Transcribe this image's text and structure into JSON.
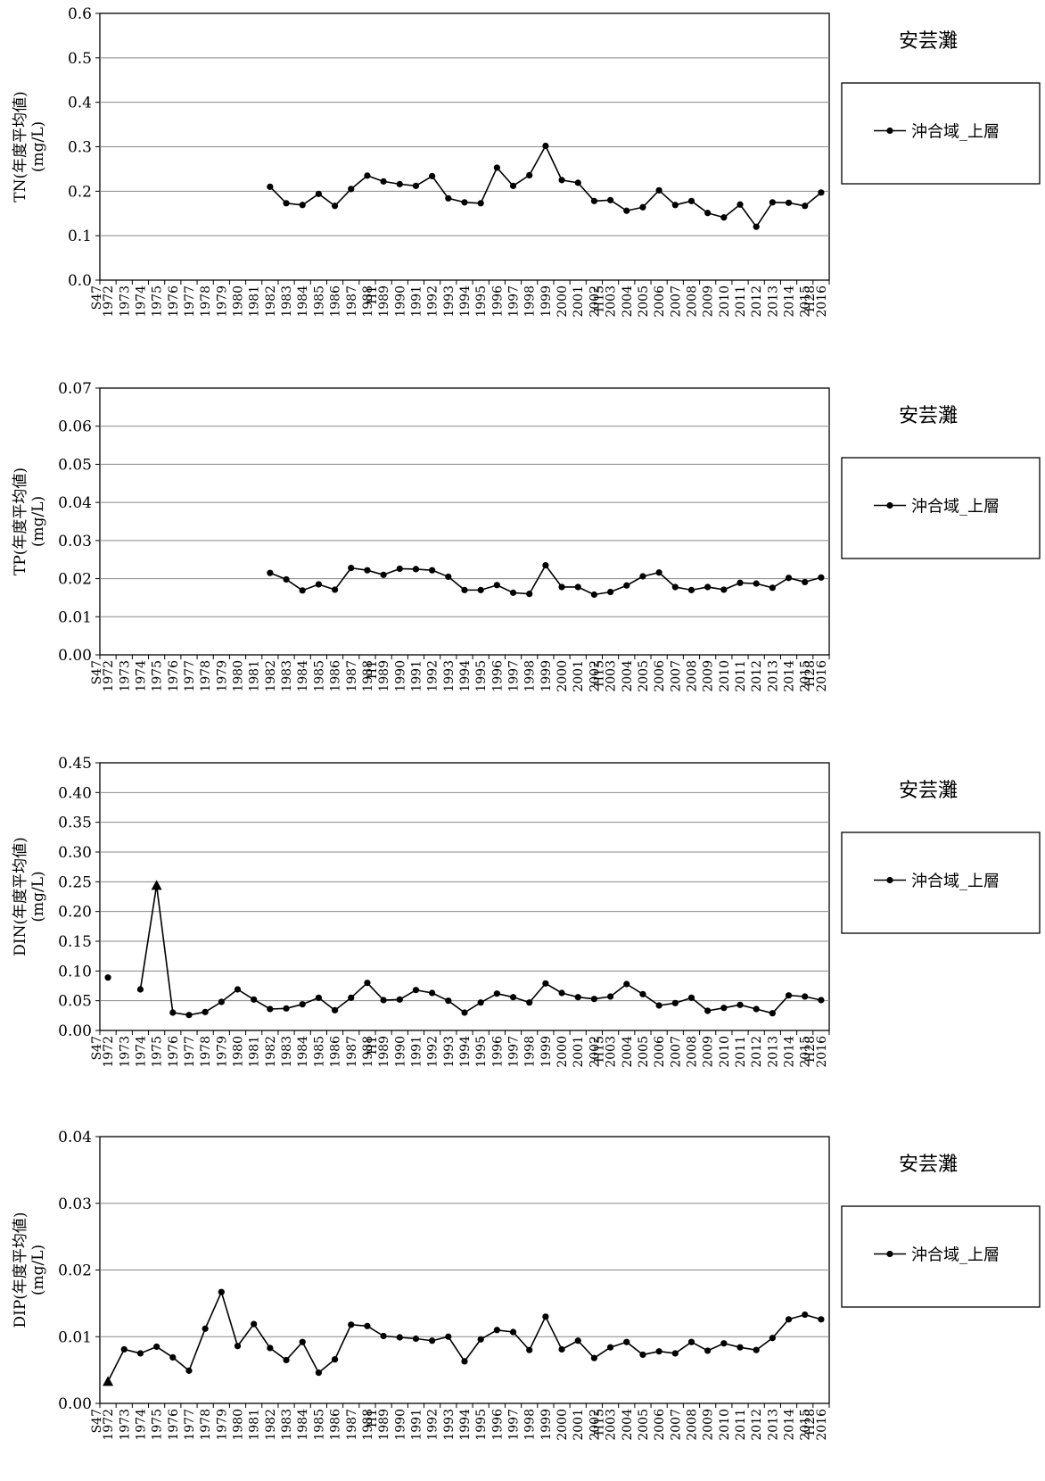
{
  "years": [
    "1972",
    "1973",
    "1974",
    "1975",
    "1976",
    "1977",
    "1978",
    "1979",
    "1980",
    "1981",
    "1982",
    "1983",
    "1984",
    "1985",
    "1986",
    "1987",
    "1988",
    "1989",
    "1990",
    "1991",
    "1992",
    "1993",
    "1994",
    "1995",
    "1996",
    "1997",
    "1998",
    "1999",
    "2000",
    "2001",
    "2002",
    "2003",
    "2004",
    "2005",
    "2006",
    "2007",
    "2008",
    "2009",
    "2010",
    "2011",
    "2012",
    "2013",
    "2014",
    "2015",
    "2016"
  ],
  "era_labels": [
    {
      "year": "1972",
      "label": "S47"
    },
    {
      "year": "1989",
      "label": "H1"
    },
    {
      "year": "2003",
      "label": "H15"
    },
    {
      "year": "2016",
      "label": "H28"
    }
  ],
  "chart_data": [
    {
      "type": "line",
      "region": "安芸灘",
      "ylabel": "TN(年度平均値)",
      "yunit": "(mg/L)",
      "ylim": [
        0,
        0.6
      ],
      "yticks": [
        "0.0",
        "0.1",
        "0.2",
        "0.3",
        "0.4",
        "0.5",
        "0.6"
      ],
      "grid": true,
      "legend_position": "right",
      "series": [
        {
          "name": "沖合域_上層",
          "values": [
            null,
            null,
            null,
            null,
            null,
            null,
            null,
            null,
            null,
            null,
            0.21,
            0.173,
            0.169,
            0.194,
            0.167,
            0.205,
            0.235,
            0.222,
            0.216,
            0.212,
            0.234,
            0.184,
            0.175,
            0.173,
            0.253,
            0.212,
            0.236,
            0.302,
            0.225,
            0.219,
            0.178,
            0.18,
            0.156,
            0.164,
            0.202,
            0.169,
            0.178,
            0.151,
            0.141,
            0.17,
            0.12,
            0.175,
            0.174,
            0.167,
            0.197
          ]
        }
      ]
    },
    {
      "type": "line",
      "region": "安芸灘",
      "ylabel": "TP(年度平均値)",
      "yunit": "(mg/L)",
      "ylim": [
        0,
        0.07
      ],
      "yticks": [
        "0.00",
        "0.01",
        "0.02",
        "0.03",
        "0.04",
        "0.05",
        "0.06",
        "0.07"
      ],
      "grid": true,
      "legend_position": "right",
      "series": [
        {
          "name": "沖合域_上層",
          "values": [
            null,
            null,
            null,
            null,
            null,
            null,
            null,
            null,
            null,
            null,
            0.0215,
            0.0198,
            0.0169,
            0.0185,
            0.0171,
            0.0228,
            0.0222,
            0.021,
            0.0226,
            0.0225,
            0.0222,
            0.0205,
            0.017,
            0.017,
            0.0183,
            0.0163,
            0.016,
            0.0235,
            0.0178,
            0.0178,
            0.0158,
            0.0165,
            0.0182,
            0.0206,
            0.0216,
            0.0178,
            0.017,
            0.0178,
            0.0171,
            0.0189,
            0.0187,
            0.0176,
            0.0202,
            0.0191,
            0.0203
          ]
        }
      ]
    },
    {
      "type": "line",
      "region": "安芸灘",
      "ylabel": "DIN(年度平均値)",
      "yunit": "(mg/L)",
      "ylim": [
        0,
        0.45
      ],
      "yticks": [
        "0.00",
        "0.05",
        "0.10",
        "0.15",
        "0.20",
        "0.25",
        "0.30",
        "0.35",
        "0.40",
        "0.45"
      ],
      "grid": true,
      "legend_position": "right",
      "triangle_markers": [
        "1975"
      ],
      "series": [
        {
          "name": "沖合域_上層",
          "values": [
            0.089,
            null,
            0.069,
            0.244,
            0.03,
            0.026,
            0.031,
            0.048,
            0.069,
            0.052,
            0.036,
            0.037,
            0.044,
            0.055,
            0.034,
            0.055,
            0.08,
            0.051,
            0.052,
            0.068,
            0.063,
            0.05,
            0.03,
            0.047,
            0.062,
            0.056,
            0.047,
            0.079,
            0.063,
            0.056,
            0.053,
            0.057,
            0.078,
            0.061,
            0.042,
            0.046,
            0.055,
            0.033,
            0.038,
            0.043,
            0.036,
            0.029,
            0.059,
            0.057,
            0.051
          ]
        }
      ]
    },
    {
      "type": "line",
      "region": "安芸灘",
      "ylabel": "DIP(年度平均値)",
      "yunit": "(mg/L)",
      "ylim": [
        0,
        0.04
      ],
      "yticks": [
        "0.00",
        "0.01",
        "0.02",
        "0.03",
        "0.04"
      ],
      "grid": true,
      "legend_position": "right",
      "triangle_markers": [
        "1972"
      ],
      "series": [
        {
          "name": "沖合域_上層",
          "values": [
            0.0033,
            0.0081,
            0.0075,
            0.0085,
            0.0069,
            0.0049,
            0.0112,
            0.0167,
            0.0086,
            0.0119,
            0.0083,
            0.0065,
            0.0092,
            0.0046,
            0.0066,
            0.0118,
            0.0116,
            0.0101,
            0.0099,
            0.0097,
            0.0094,
            0.01,
            0.0063,
            0.0096,
            0.011,
            0.0107,
            0.008,
            0.013,
            0.0081,
            0.0094,
            0.0068,
            0.0084,
            0.0092,
            0.0073,
            0.0078,
            0.0075,
            0.0092,
            0.0079,
            0.009,
            0.0084,
            0.008,
            0.0098,
            0.0126,
            0.0133,
            0.0126
          ]
        }
      ]
    }
  ]
}
